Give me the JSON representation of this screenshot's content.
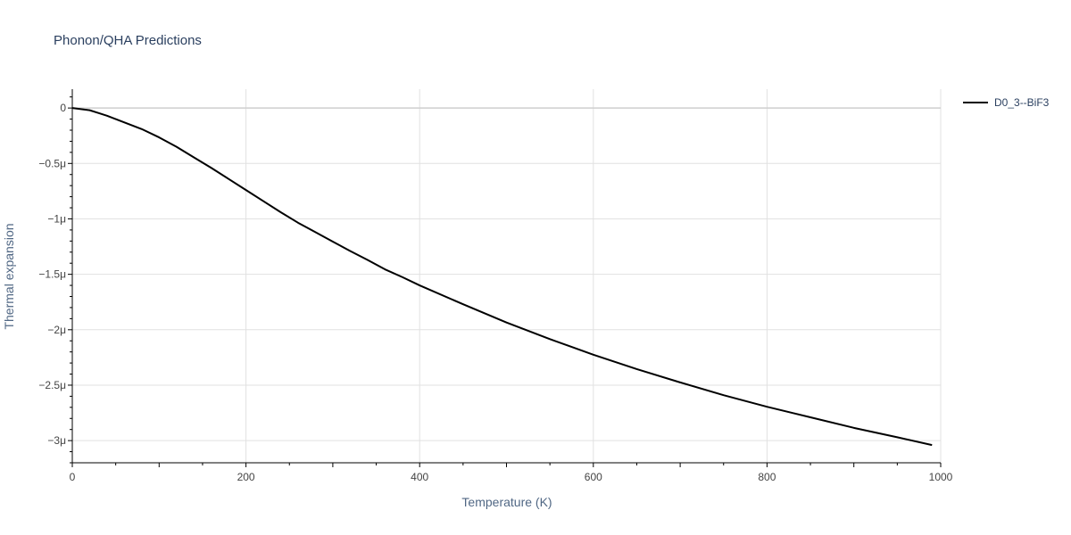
{
  "chart_data": {
    "type": "line",
    "title": "Phonon/QHA Predictions",
    "xlabel": "Temperature (K)",
    "ylabel": "Thermal expansion",
    "xlim": [
      0,
      1000
    ],
    "ylim": [
      -3.2,
      0.17
    ],
    "y_unit_suffix": "μ",
    "x_ticks": [
      0,
      200,
      400,
      600,
      800,
      1000
    ],
    "x_tick_labels": [
      "0",
      "200",
      "400",
      "600",
      "800",
      "1000"
    ],
    "y_ticks": [
      0,
      -0.5,
      -1,
      -1.5,
      -2,
      -2.5,
      -3
    ],
    "y_tick_labels": [
      "0",
      "−0.5μ",
      "−1μ",
      "−1.5μ",
      "−2μ",
      "−2.5μ",
      "−3μ"
    ],
    "grid": true,
    "legend_position": "top-right",
    "series": [
      {
        "name": "D0_3--BiF3",
        "color": "#000000",
        "x": [
          0,
          10,
          20,
          30,
          40,
          50,
          60,
          80,
          100,
          120,
          140,
          160,
          180,
          200,
          220,
          240,
          260,
          280,
          300,
          320,
          340,
          360,
          380,
          400,
          450,
          500,
          550,
          600,
          650,
          700,
          750,
          800,
          850,
          900,
          950,
          990
        ],
        "y": [
          0,
          -0.01,
          -0.02,
          -0.045,
          -0.07,
          -0.1,
          -0.13,
          -0.19,
          -0.265,
          -0.35,
          -0.445,
          -0.54,
          -0.64,
          -0.74,
          -0.84,
          -0.94,
          -1.035,
          -1.12,
          -1.205,
          -1.29,
          -1.37,
          -1.455,
          -1.525,
          -1.6,
          -1.77,
          -1.935,
          -2.085,
          -2.225,
          -2.355,
          -2.475,
          -2.59,
          -2.695,
          -2.79,
          -2.885,
          -2.97,
          -3.04
        ]
      }
    ]
  }
}
